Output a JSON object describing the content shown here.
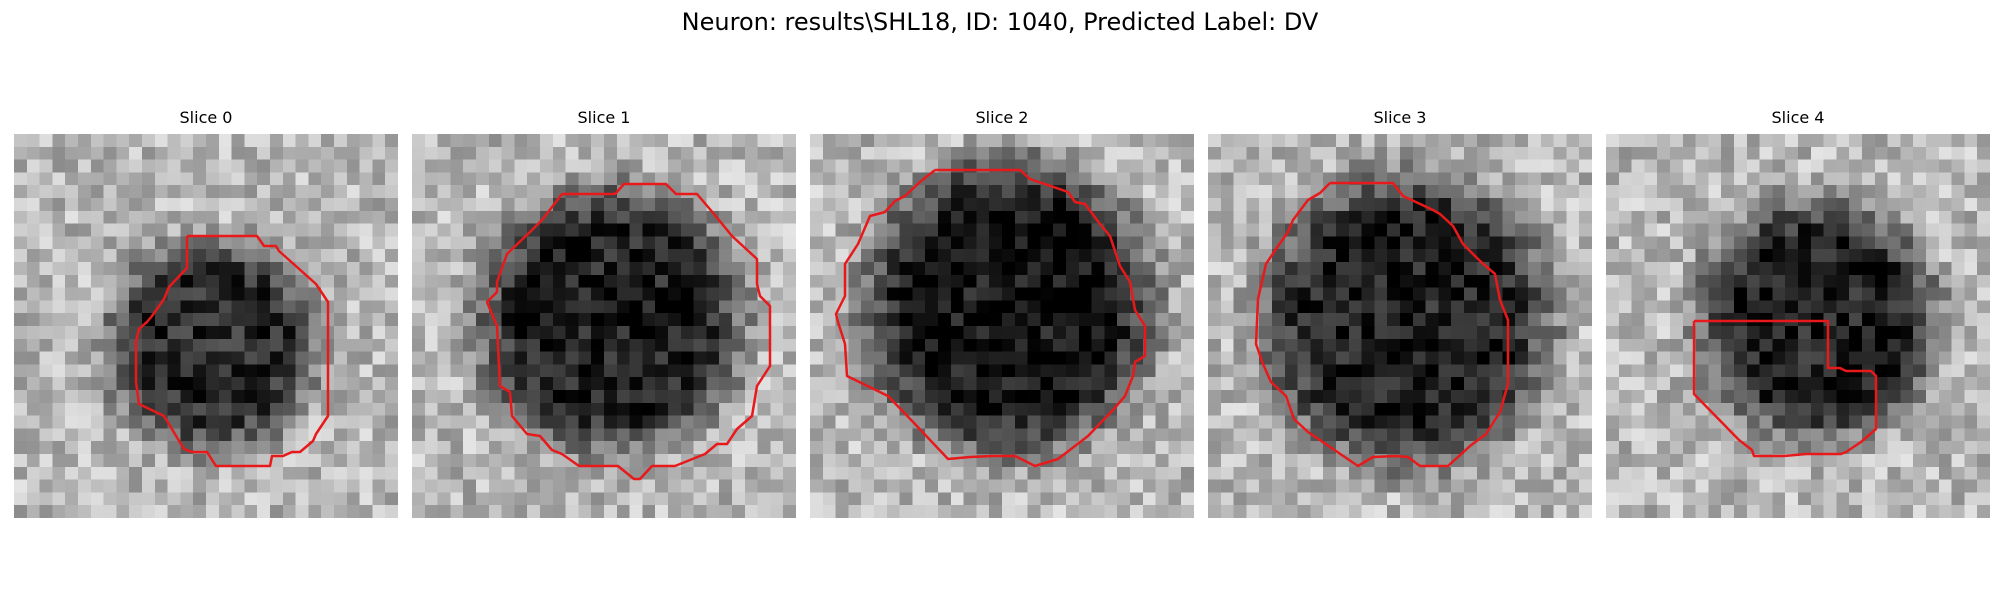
{
  "figure": {
    "title": "Neuron: results\\SHL18, ID: 1040, Predicted Label: DV"
  },
  "contour_color": "#e8191b",
  "panels": [
    {
      "title": "Slice 0",
      "cell": {
        "cx": 15,
        "cy": 16,
        "r": 8,
        "dark": 0.55
      }
    },
    {
      "title": "Slice 1",
      "cell": {
        "cx": 15,
        "cy": 14,
        "r": 10,
        "dark": 0.6
      }
    },
    {
      "title": "Slice 2",
      "cell": {
        "cx": 15,
        "cy": 13,
        "r": 11,
        "dark": 0.65
      }
    },
    {
      "title": "Slice 3",
      "cell": {
        "cx": 15,
        "cy": 14,
        "r": 11,
        "dark": 0.6
      }
    },
    {
      "title": "Slice 4",
      "cell": {
        "cx": 16,
        "cy": 14,
        "r": 9,
        "dark": 0.6
      }
    }
  ]
}
